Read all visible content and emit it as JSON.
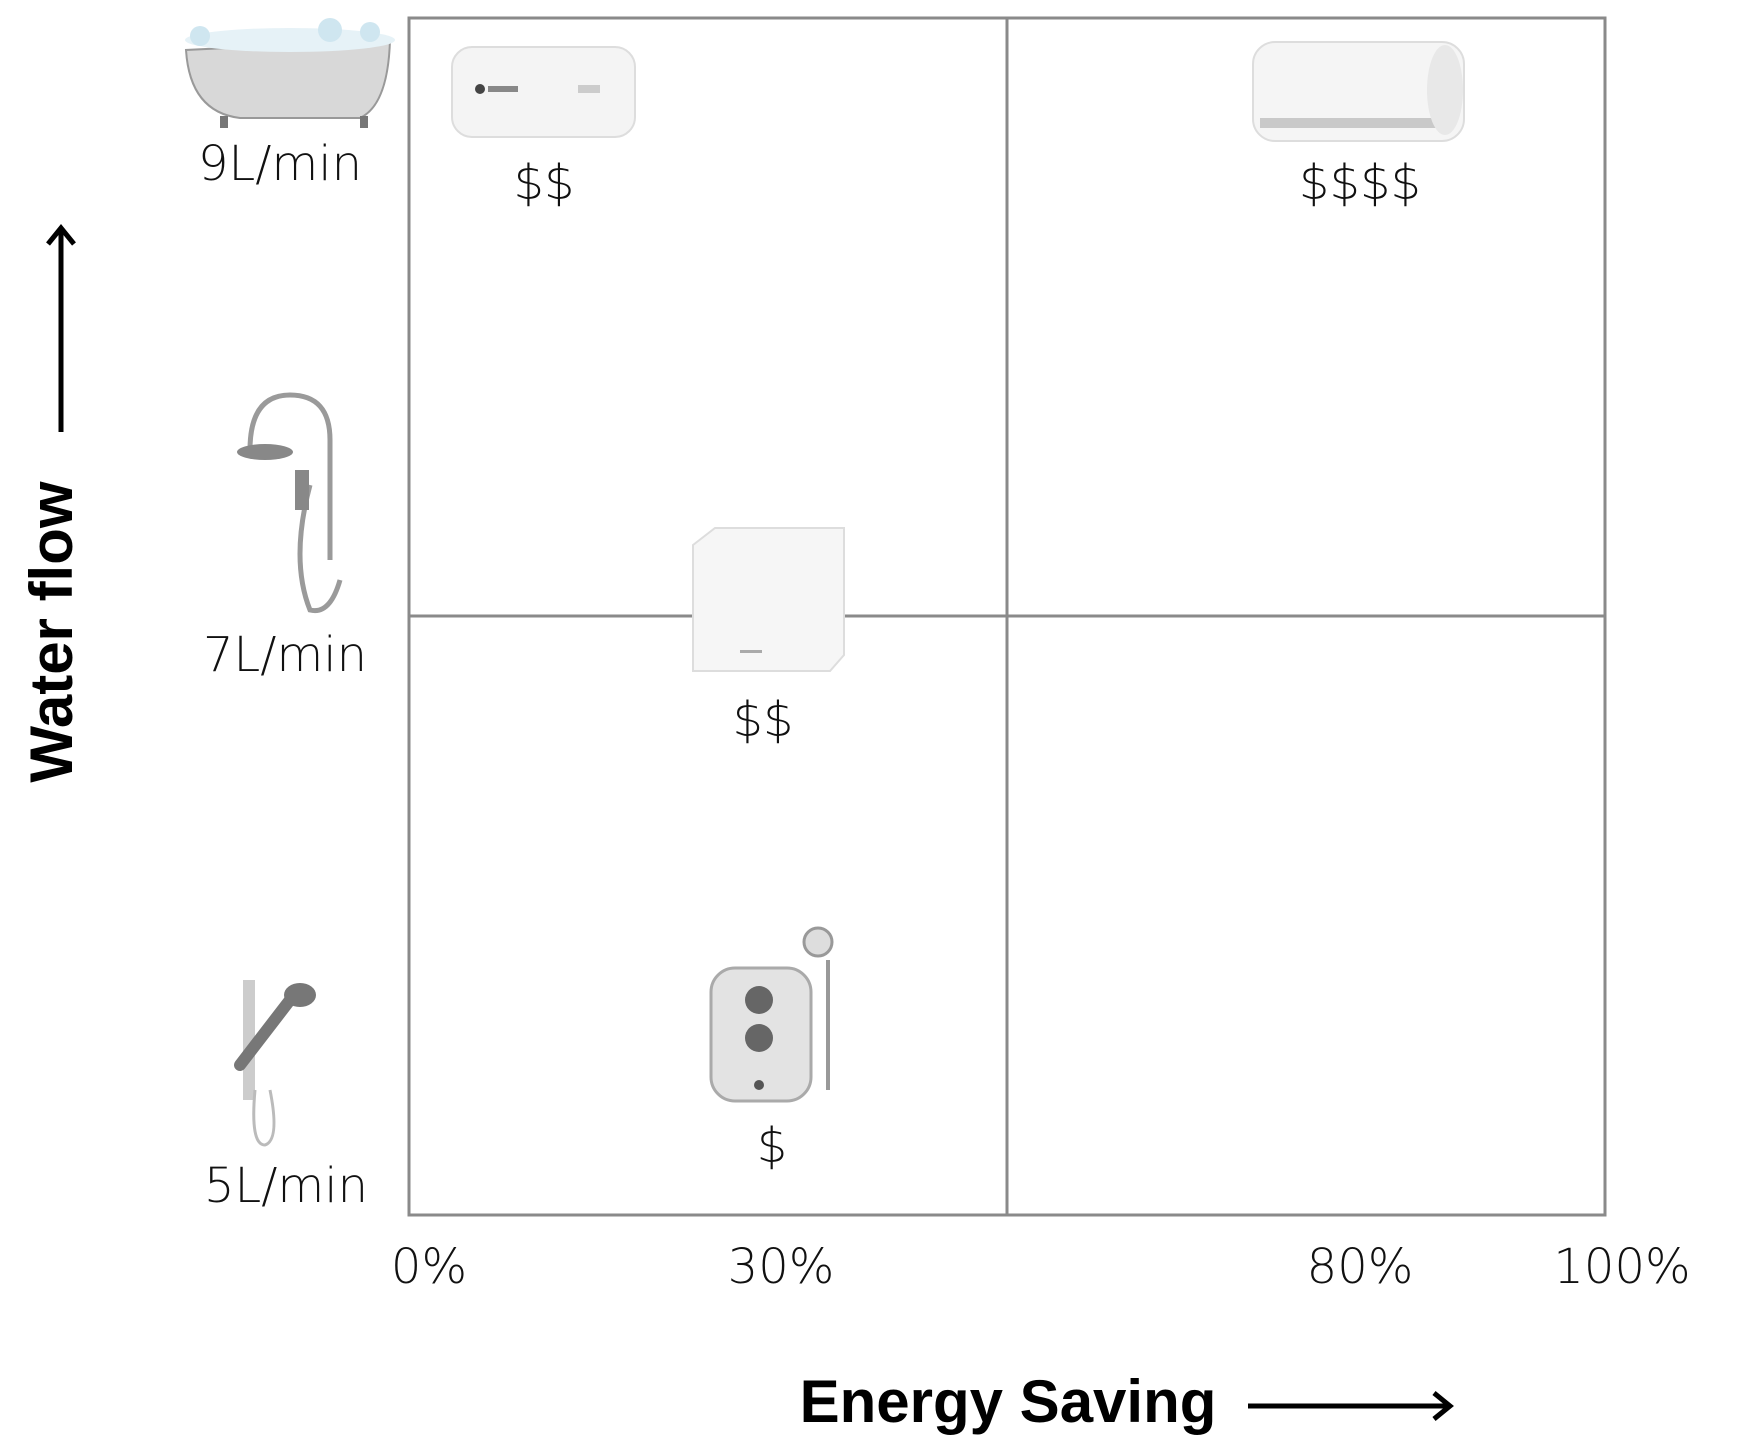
{
  "y_axis": {
    "title": "Water flow",
    "labels": [
      "9L/min",
      "7L/min",
      "5L/min"
    ]
  },
  "x_axis": {
    "title": "Energy Saving",
    "labels": [
      "0%",
      "30%",
      "80%",
      "100%"
    ]
  },
  "products": [
    {
      "price": "$$"
    },
    {
      "price": "$$$$"
    },
    {
      "price": "$$"
    },
    {
      "price": "$"
    }
  ]
}
